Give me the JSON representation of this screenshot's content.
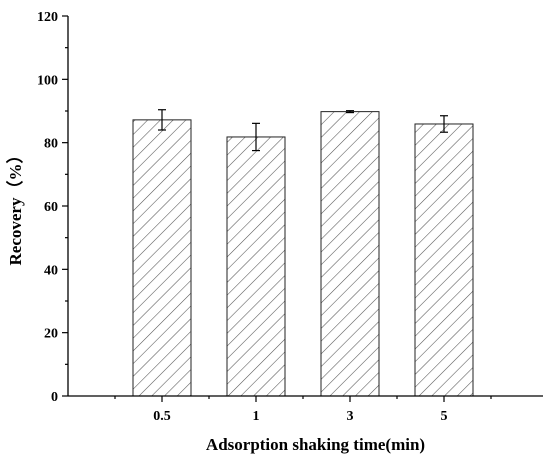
{
  "chart_data": {
    "type": "bar",
    "title": "",
    "xlabel": "Adsorption shaking time(min)",
    "ylabel": "Recovery（%）",
    "categories": [
      "0.5",
      "1",
      "3",
      "5"
    ],
    "values": [
      87.2,
      81.8,
      89.8,
      85.9
    ],
    "errors": [
      3.2,
      4.3,
      0.3,
      2.6
    ],
    "ylim": [
      0,
      120
    ],
    "yticks": [
      0,
      20,
      40,
      60,
      80,
      100,
      120
    ],
    "bar_fill": "hatched",
    "grid": false,
    "legend": "none"
  },
  "colors": {
    "axis": "#000000",
    "bar_edge": "#222222",
    "hatch": "#555555",
    "background": "#ffffff"
  }
}
